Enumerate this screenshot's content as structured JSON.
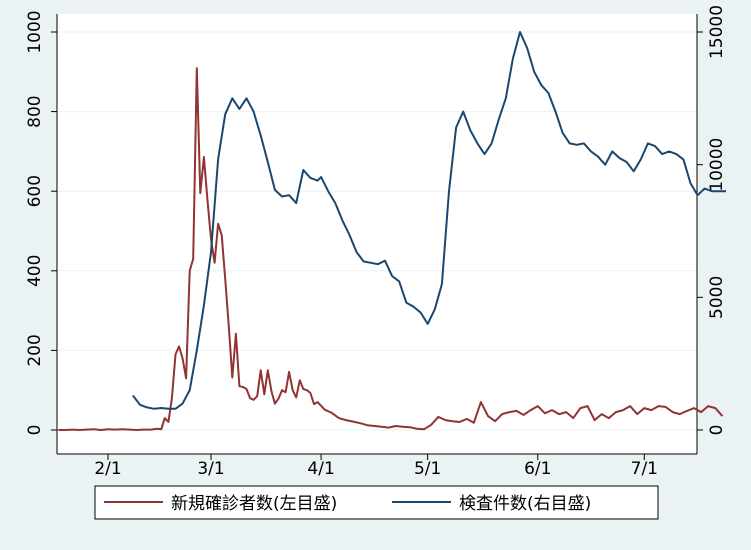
{
  "chart_data": {
    "type": "line",
    "x_ticks": [
      "2/1",
      "3/1",
      "4/1",
      "5/1",
      "6/1",
      "7/1"
    ],
    "left_axis": {
      "ticks": [
        "0",
        "200",
        "400",
        "600",
        "800",
        "1000"
      ],
      "ylim": [
        0,
        1000
      ]
    },
    "right_axis": {
      "ticks": [
        "0",
        "5000",
        "10000",
        "15000"
      ],
      "ylim": [
        0,
        15000
      ]
    },
    "legend_position": "bottom",
    "grid": "horizontal",
    "series": [
      {
        "name": "新規確診者数(左目盛)",
        "axis": "left",
        "color": "#903434",
        "x": [
          "2020-01-18",
          "2020-01-20",
          "2020-01-22",
          "2020-01-24",
          "2020-01-26",
          "2020-01-28",
          "2020-01-30",
          "2020-02-01",
          "2020-02-03",
          "2020-02-05",
          "2020-02-07",
          "2020-02-09",
          "2020-02-11",
          "2020-02-13",
          "2020-02-15",
          "2020-02-16",
          "2020-02-17",
          "2020-02-18",
          "2020-02-19",
          "2020-02-20",
          "2020-02-21",
          "2020-02-22",
          "2020-02-23",
          "2020-02-24",
          "2020-02-25",
          "2020-02-26",
          "2020-02-27",
          "2020-02-28",
          "2020-02-29",
          "2020-03-01",
          "2020-03-02",
          "2020-03-03",
          "2020-03-04",
          "2020-03-05",
          "2020-03-06",
          "2020-03-07",
          "2020-03-08",
          "2020-03-09",
          "2020-03-10",
          "2020-03-11",
          "2020-03-12",
          "2020-03-13",
          "2020-03-14",
          "2020-03-15",
          "2020-03-16",
          "2020-03-17",
          "2020-03-18",
          "2020-03-19",
          "2020-03-20",
          "2020-03-21",
          "2020-03-22",
          "2020-03-23",
          "2020-03-24",
          "2020-03-25",
          "2020-03-26",
          "2020-03-27",
          "2020-03-28",
          "2020-03-29",
          "2020-03-30",
          "2020-03-31",
          "2020-04-02",
          "2020-04-04",
          "2020-04-06",
          "2020-04-08",
          "2020-04-10",
          "2020-04-12",
          "2020-04-14",
          "2020-04-16",
          "2020-04-18",
          "2020-04-20",
          "2020-04-22",
          "2020-04-24",
          "2020-04-26",
          "2020-04-28",
          "2020-04-30",
          "2020-05-02",
          "2020-05-04",
          "2020-05-06",
          "2020-05-08",
          "2020-05-10",
          "2020-05-12",
          "2020-05-14",
          "2020-05-16",
          "2020-05-18",
          "2020-05-20",
          "2020-05-22",
          "2020-05-24",
          "2020-05-26",
          "2020-05-28",
          "2020-05-30",
          "2020-06-01",
          "2020-06-03",
          "2020-06-05",
          "2020-06-07",
          "2020-06-09",
          "2020-06-11",
          "2020-06-13",
          "2020-06-15",
          "2020-06-17",
          "2020-06-19",
          "2020-06-21",
          "2020-06-23",
          "2020-06-25",
          "2020-06-27",
          "2020-06-29",
          "2020-07-01",
          "2020-07-03",
          "2020-07-05",
          "2020-07-07",
          "2020-07-09",
          "2020-07-11",
          "2020-07-13",
          "2020-07-15",
          "2020-07-17",
          "2020-07-19",
          "2020-07-21",
          "2020-07-23"
        ],
        "y": [
          0,
          0,
          1,
          0,
          1,
          2,
          0,
          2,
          1,
          2,
          1,
          0,
          1,
          1,
          3,
          2,
          30,
          20,
          80,
          190,
          210,
          180,
          130,
          400,
          430,
          909,
          595,
          686,
          580,
          480,
          420,
          518,
          490,
          380,
          260,
          132,
          242,
          110,
          108,
          103,
          80,
          76,
          85,
          150,
          90,
          150,
          98,
          66,
          79,
          100,
          95,
          146,
          100,
          82,
          125,
          103,
          100,
          93,
          65,
          70,
          51,
          43,
          30,
          25,
          21,
          17,
          12,
          10,
          8,
          6,
          10,
          8,
          7,
          3,
          2,
          13,
          33,
          25,
          22,
          20,
          28,
          18,
          70,
          35,
          22,
          40,
          45,
          48,
          38,
          50,
          60,
          42,
          50,
          40,
          45,
          30,
          55,
          60,
          25,
          40,
          30,
          45,
          50,
          60,
          40,
          55,
          50,
          60,
          58,
          45,
          40,
          48,
          55,
          45,
          60,
          55,
          35
        ]
      },
      {
        "name": "検査件数(右目盛)",
        "axis": "right",
        "color": "#1a476f",
        "x": [
          "2020-02-08",
          "2020-02-10",
          "2020-02-12",
          "2020-02-14",
          "2020-02-16",
          "2020-02-18",
          "2020-02-20",
          "2020-02-22",
          "2020-02-24",
          "2020-02-26",
          "2020-02-28",
          "2020-03-01",
          "2020-03-03",
          "2020-03-05",
          "2020-03-07",
          "2020-03-09",
          "2020-03-11",
          "2020-03-13",
          "2020-03-15",
          "2020-03-17",
          "2020-03-19",
          "2020-03-21",
          "2020-03-23",
          "2020-03-25",
          "2020-03-27",
          "2020-03-29",
          "2020-03-31",
          "2020-04-01",
          "2020-04-03",
          "2020-04-05",
          "2020-04-07",
          "2020-04-09",
          "2020-04-11",
          "2020-04-13",
          "2020-04-15",
          "2020-04-17",
          "2020-04-19",
          "2020-04-21",
          "2020-04-23",
          "2020-04-25",
          "2020-04-27",
          "2020-04-29",
          "2020-05-01",
          "2020-05-03",
          "2020-05-05",
          "2020-05-07",
          "2020-05-09",
          "2020-05-11",
          "2020-05-13",
          "2020-05-15",
          "2020-05-17",
          "2020-05-19",
          "2020-05-21",
          "2020-05-23",
          "2020-05-25",
          "2020-05-27",
          "2020-05-29",
          "2020-05-31",
          "2020-06-02",
          "2020-06-04",
          "2020-06-06",
          "2020-06-08",
          "2020-06-10",
          "2020-06-12",
          "2020-06-14",
          "2020-06-16",
          "2020-06-18",
          "2020-06-20",
          "2020-06-22",
          "2020-06-24",
          "2020-06-26",
          "2020-06-28",
          "2020-06-30",
          "2020-07-02",
          "2020-07-04",
          "2020-07-06",
          "2020-07-08",
          "2020-07-10",
          "2020-07-12",
          "2020-07-14",
          "2020-07-16",
          "2020-07-18",
          "2020-07-20",
          "2020-07-22",
          "2020-07-24"
        ],
        "y": [
          1300,
          950,
          850,
          800,
          830,
          800,
          800,
          1000,
          1500,
          3000,
          4700,
          6700,
          10200,
          11900,
          12500,
          12100,
          12500,
          12000,
          11100,
          10100,
          9050,
          8800,
          8850,
          8550,
          9800,
          9500,
          9400,
          9530,
          9000,
          8550,
          7900,
          7350,
          6700,
          6350,
          6300,
          6250,
          6380,
          5800,
          5600,
          4800,
          4650,
          4430,
          4000,
          4550,
          5500,
          9000,
          11400,
          12000,
          11300,
          10800,
          10400,
          10800,
          11700,
          12500,
          14000,
          15000,
          14400,
          13500,
          13000,
          12700,
          12000,
          11200,
          10800,
          10750,
          10800,
          10500,
          10300,
          10000,
          10500,
          10250,
          10100,
          9750,
          10200,
          10800,
          10700,
          10400,
          10500,
          10400,
          10200,
          9300,
          8850,
          9100,
          9000,
          9000,
          9000
        ]
      }
    ]
  },
  "legend": {
    "items": [
      {
        "label": "新規確診者数(左目盛)",
        "color": "#903434"
      },
      {
        "label": "検査件数(右目盛)",
        "color": "#1a476f"
      }
    ]
  }
}
